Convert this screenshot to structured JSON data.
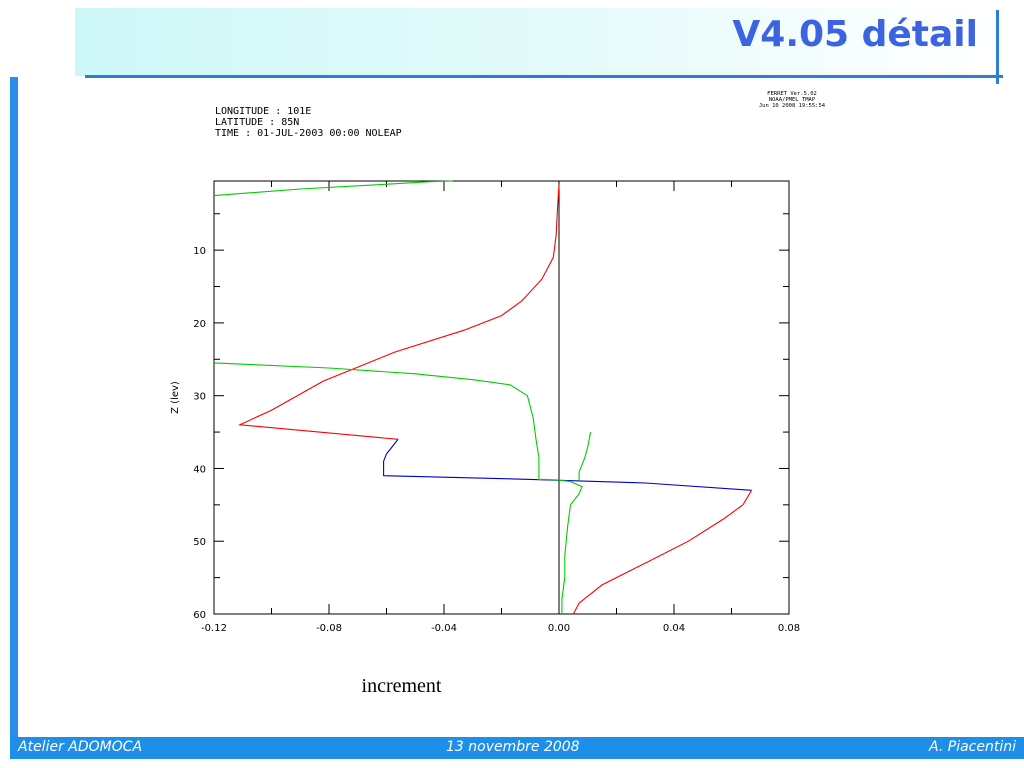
{
  "slide": {
    "title": "V4.05 détail",
    "footer": {
      "left": "Atelier ADOMOCA",
      "center": "13 novembre 2008",
      "right": "A. Piacentini"
    },
    "colors": {
      "accent": "#2a8de8",
      "title": "#3c63e0",
      "band": "#cdf7f7"
    }
  },
  "chart_data": {
    "type": "line",
    "header_lines": [
      "LONGITUDE : 101E",
      "LATITUDE : 85N",
      "TIME : 01-JUL-2003 00:00 NOLEAP"
    ],
    "stamp_lines": [
      "FERRET Ver.5.02",
      "NOAA/PMEL TMAP",
      "Jun 10 2008 19:55:54"
    ],
    "xlabel": "increment",
    "ylabel": "Z (lev)",
    "xlim": [
      -0.12,
      0.08
    ],
    "ylim": [
      60,
      0.5
    ],
    "xticks": [
      -0.12,
      -0.08,
      -0.04,
      0.0,
      0.04,
      0.08
    ],
    "xtick_labels": [
      "-0.12",
      "-0.08",
      "-0.04",
      "0.00",
      "0.04",
      "0.08"
    ],
    "yticks": [
      10,
      20,
      30,
      40,
      50,
      60
    ],
    "ytick_labels": [
      "10",
      "20",
      "30",
      "40",
      "50",
      "60"
    ],
    "zero_line": 0.0,
    "series": [
      {
        "color": "#ff0000",
        "points": [
          [
            0.0,
            1
          ],
          [
            -0.0005,
            4
          ],
          [
            -0.001,
            8
          ],
          [
            -0.002,
            11
          ],
          [
            -0.006,
            14
          ],
          [
            -0.013,
            17
          ],
          [
            -0.02,
            19
          ],
          [
            -0.033,
            21
          ],
          [
            -0.057,
            24
          ],
          [
            -0.082,
            28
          ],
          [
            -0.1,
            32
          ],
          [
            -0.111,
            34
          ],
          [
            -0.056,
            36
          ]
        ]
      },
      {
        "color": "#0000cc",
        "points": [
          [
            -0.056,
            36
          ],
          [
            -0.058,
            37
          ],
          [
            -0.06,
            38
          ],
          [
            -0.061,
            39
          ],
          [
            -0.061,
            41
          ],
          [
            -0.04,
            41.2
          ],
          [
            -0.01,
            41.5
          ],
          [
            0.03,
            42
          ],
          [
            0.067,
            43
          ]
        ]
      },
      {
        "color": "#ff0000",
        "points": [
          [
            0.067,
            43
          ],
          [
            0.064,
            45
          ],
          [
            0.057,
            47
          ],
          [
            0.045,
            50
          ],
          [
            0.03,
            53
          ],
          [
            0.015,
            56
          ],
          [
            0.007,
            58.5
          ],
          [
            0.005,
            60
          ]
        ]
      },
      {
        "color": "#00cc00",
        "points": [
          [
            -0.12,
            2.5
          ],
          [
            -0.09,
            1.6
          ],
          [
            -0.062,
            1.0
          ],
          [
            -0.045,
            0.6
          ],
          [
            -0.037,
            0.5
          ]
        ]
      },
      {
        "color": "#00cc00",
        "points": [
          [
            -0.12,
            25.5
          ],
          [
            -0.08,
            26.2
          ],
          [
            -0.05,
            27
          ],
          [
            -0.03,
            27.8
          ],
          [
            -0.017,
            28.5
          ],
          [
            -0.011,
            30
          ],
          [
            -0.009,
            33
          ],
          [
            -0.008,
            36
          ],
          [
            -0.007,
            38.5
          ],
          [
            -0.007,
            41.5
          ],
          [
            -0.005,
            41.5
          ],
          [
            0.0,
            41.6
          ],
          [
            0.004,
            41.8
          ],
          [
            0.008,
            42.5
          ],
          [
            0.007,
            43.5
          ],
          [
            0.004,
            45
          ],
          [
            0.003,
            48
          ],
          [
            0.002,
            52
          ],
          [
            0.002,
            55
          ],
          [
            0.001,
            58
          ],
          [
            0.001,
            60
          ]
        ]
      },
      {
        "color": "#00cc00",
        "points": [
          [
            0.011,
            35
          ],
          [
            0.01,
            37
          ],
          [
            0.009,
            38.5
          ],
          [
            0.008,
            39.5
          ],
          [
            0.007,
            40.5
          ],
          [
            0.007,
            41.7
          ]
        ]
      }
    ]
  }
}
